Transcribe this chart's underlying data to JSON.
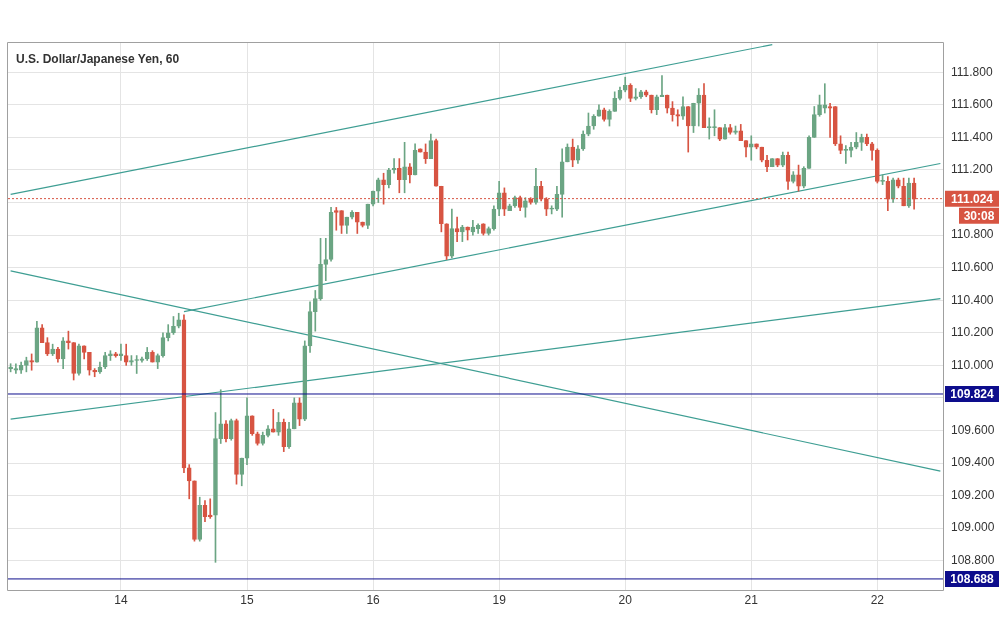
{
  "chart_data": {
    "type": "candlestick",
    "title": "U.S. Dollar/Japanese Yen, 60",
    "categories": [
      null,
      null,
      null,
      null,
      null,
      null,
      null,
      null,
      null,
      null,
      null,
      null,
      null,
      null,
      null,
      null,
      null,
      null,
      null,
      null,
      null,
      "14",
      null,
      null,
      null,
      null,
      null,
      null,
      null,
      null,
      null,
      null,
      null,
      null,
      null,
      null,
      null,
      null,
      null,
      null,
      null,
      null,
      null,
      null,
      null,
      "15",
      null,
      null,
      null,
      null,
      null,
      null,
      null,
      null,
      null,
      null,
      null,
      null,
      null,
      null,
      null,
      null,
      null,
      null,
      null,
      null,
      null,
      null,
      null,
      "16",
      null,
      null,
      null,
      null,
      null,
      null,
      null,
      null,
      null,
      null,
      null,
      null,
      null,
      null,
      null,
      null,
      null,
      null,
      null,
      null,
      null,
      null,
      null,
      "19",
      null,
      null,
      null,
      null,
      null,
      null,
      null,
      null,
      null,
      null,
      null,
      null,
      null,
      null,
      null,
      null,
      null,
      null,
      null,
      null,
      null,
      null,
      null,
      "20",
      null,
      null,
      null,
      null,
      null,
      null,
      null,
      null,
      null,
      null,
      null,
      null,
      null,
      null,
      null,
      null,
      null,
      null,
      null,
      null,
      null,
      null,
      null,
      "21",
      null,
      null,
      null,
      null,
      null,
      null,
      null,
      null,
      null,
      null,
      null,
      null,
      null,
      null,
      null,
      null,
      null,
      null,
      null,
      null,
      null,
      null,
      null,
      "22",
      null,
      null,
      null,
      null,
      null,
      null,
      null,
      null,
      null,
      null,
      null,
      null
    ],
    "ohlc": [
      [
        109.98,
        110.01,
        109.96,
        109.99
      ],
      [
        109.97,
        110.01,
        109.95,
        109.98
      ],
      [
        109.97,
        110.02,
        109.95,
        110.0
      ],
      [
        110.0,
        110.05,
        109.96,
        110.03
      ],
      [
        110.03,
        110.07,
        109.97,
        110.02
      ],
      [
        110.02,
        110.27,
        110.02,
        110.23
      ],
      [
        110.23,
        110.25,
        110.14,
        110.14
      ],
      [
        110.14,
        110.17,
        110.06,
        110.07
      ],
      [
        110.07,
        110.13,
        110.06,
        110.1
      ],
      [
        110.1,
        110.11,
        110.02,
        110.04
      ],
      [
        110.04,
        110.17,
        109.98,
        110.15
      ],
      [
        110.15,
        110.21,
        110.1,
        110.14
      ],
      [
        110.14,
        110.14,
        109.91,
        109.95
      ],
      [
        109.95,
        110.13,
        109.94,
        110.12
      ],
      [
        110.12,
        110.12,
        110.04,
        110.08
      ],
      [
        110.08,
        110.08,
        109.94,
        109.97
      ],
      [
        109.97,
        109.98,
        109.93,
        109.96
      ],
      [
        109.96,
        110.02,
        109.95,
        109.99
      ],
      [
        109.99,
        110.08,
        109.98,
        110.06
      ],
      [
        110.06,
        110.09,
        110.03,
        110.07
      ],
      [
        110.07,
        110.08,
        110.05,
        110.06
      ],
      [
        110.06,
        110.13,
        110.03,
        110.07
      ],
      [
        110.06,
        110.13,
        110.0,
        110.02
      ],
      [
        110.02,
        110.06,
        110.0,
        110.03
      ],
      [
        110.03,
        110.06,
        109.95,
        110.03
      ],
      [
        110.03,
        110.05,
        110.02,
        110.04
      ],
      [
        110.04,
        110.11,
        110.03,
        110.08
      ],
      [
        110.08,
        110.09,
        110.02,
        110.02
      ],
      [
        110.02,
        110.07,
        109.98,
        110.06
      ],
      [
        110.06,
        110.2,
        110.05,
        110.17
      ],
      [
        110.17,
        110.25,
        110.15,
        110.2
      ],
      [
        110.2,
        110.3,
        110.19,
        110.24
      ],
      [
        110.24,
        110.32,
        110.23,
        110.28
      ],
      [
        110.28,
        110.31,
        109.34,
        109.37
      ],
      [
        109.37,
        109.39,
        109.18,
        109.29
      ],
      [
        109.29,
        109.29,
        108.92,
        108.93
      ],
      [
        108.93,
        109.19,
        108.92,
        109.14
      ],
      [
        109.14,
        109.17,
        109.04,
        109.07
      ],
      [
        109.08,
        109.18,
        109.06,
        109.07
      ],
      [
        109.08,
        109.71,
        108.79,
        109.55
      ],
      [
        109.55,
        109.85,
        109.52,
        109.64
      ],
      [
        109.64,
        109.66,
        109.53,
        109.55
      ],
      [
        109.55,
        109.67,
        109.54,
        109.66
      ],
      [
        109.66,
        109.67,
        109.27,
        109.33
      ],
      [
        109.33,
        109.43,
        109.26,
        109.43
      ],
      [
        109.43,
        109.8,
        109.39,
        109.69
      ],
      [
        109.69,
        109.69,
        109.57,
        109.58
      ],
      [
        109.58,
        109.59,
        109.51,
        109.52
      ],
      [
        109.52,
        109.59,
        109.51,
        109.57
      ],
      [
        109.57,
        109.63,
        109.56,
        109.61
      ],
      [
        109.61,
        109.73,
        109.59,
        109.59
      ],
      [
        109.59,
        109.71,
        109.57,
        109.65
      ],
      [
        109.65,
        109.67,
        109.47,
        109.5
      ],
      [
        109.5,
        109.65,
        109.49,
        109.61
      ],
      [
        109.61,
        109.8,
        109.61,
        109.77
      ],
      [
        109.77,
        109.8,
        109.63,
        109.67
      ],
      [
        109.67,
        110.15,
        109.66,
        110.12
      ],
      [
        110.12,
        110.39,
        110.08,
        110.33
      ],
      [
        110.33,
        110.46,
        110.21,
        110.41
      ],
      [
        110.41,
        110.78,
        110.4,
        110.62
      ],
      [
        110.62,
        110.78,
        110.52,
        110.65
      ],
      [
        110.65,
        110.97,
        110.64,
        110.94
      ],
      [
        110.95,
        110.97,
        110.83,
        110.94
      ],
      [
        110.95,
        110.95,
        110.81,
        110.86
      ],
      [
        110.86,
        110.91,
        110.81,
        110.91
      ],
      [
        110.91,
        110.95,
        110.9,
        110.94
      ],
      [
        110.94,
        110.94,
        110.81,
        110.88
      ],
      [
        110.88,
        110.88,
        110.85,
        110.86
      ],
      [
        110.86,
        110.99,
        110.84,
        110.99
      ],
      [
        110.99,
        111.07,
        110.98,
        111.07
      ],
      [
        111.07,
        111.15,
        111.0,
        111.14
      ],
      [
        111.14,
        111.18,
        110.99,
        111.11
      ],
      [
        111.11,
        111.21,
        111.09,
        111.2
      ],
      [
        111.2,
        111.27,
        111.18,
        111.21
      ],
      [
        111.21,
        111.27,
        111.06,
        111.14
      ],
      [
        111.14,
        111.37,
        111.06,
        111.22
      ],
      [
        111.22,
        111.24,
        111.12,
        111.17
      ],
      [
        111.17,
        111.36,
        111.17,
        111.32
      ],
      [
        111.33,
        111.33,
        111.31,
        111.31
      ],
      [
        111.31,
        111.36,
        111.24,
        111.27
      ],
      [
        111.27,
        111.42,
        111.27,
        111.38
      ],
      [
        111.38,
        111.39,
        111.1,
        111.1
      ],
      [
        111.1,
        111.1,
        110.82,
        110.87
      ],
      [
        110.87,
        110.87,
        110.65,
        110.67
      ],
      [
        110.67,
        110.96,
        110.66,
        110.84
      ],
      [
        110.84,
        110.91,
        110.76,
        110.82
      ],
      [
        110.82,
        110.86,
        110.76,
        110.85
      ],
      [
        110.85,
        110.85,
        110.77,
        110.83
      ],
      [
        110.82,
        110.89,
        110.8,
        110.85
      ],
      [
        110.84,
        110.87,
        110.81,
        110.86
      ],
      [
        110.87,
        110.87,
        110.8,
        110.81
      ],
      [
        110.81,
        110.85,
        110.8,
        110.84
      ],
      [
        110.84,
        110.98,
        110.83,
        110.96
      ],
      [
        110.96,
        111.13,
        110.92,
        111.06
      ],
      [
        111.06,
        111.09,
        110.92,
        110.96
      ],
      [
        110.95,
        110.99,
        110.95,
        110.98
      ],
      [
        110.98,
        111.04,
        110.97,
        111.03
      ],
      [
        111.03,
        111.04,
        110.95,
        110.97
      ],
      [
        110.97,
        111.03,
        110.91,
        111.01
      ],
      [
        111.02,
        111.03,
        110.99,
        111.0
      ],
      [
        111.0,
        111.21,
        110.99,
        111.1
      ],
      [
        111.1,
        111.13,
        111.01,
        111.02
      ],
      [
        111.02,
        111.03,
        110.92,
        110.96
      ],
      [
        110.96,
        110.98,
        110.93,
        110.96
      ],
      [
        110.96,
        111.1,
        110.95,
        111.05
      ],
      [
        111.05,
        111.33,
        110.91,
        111.25
      ],
      [
        111.25,
        111.36,
        111.25,
        111.34
      ],
      [
        111.34,
        111.39,
        111.22,
        111.26
      ],
      [
        111.26,
        111.35,
        111.24,
        111.33
      ],
      [
        111.33,
        111.44,
        111.32,
        111.42
      ],
      [
        111.42,
        111.55,
        111.41,
        111.47
      ],
      [
        111.47,
        111.54,
        111.45,
        111.53
      ],
      [
        111.53,
        111.6,
        111.53,
        111.57
      ],
      [
        111.57,
        111.58,
        111.5,
        111.51
      ],
      [
        111.51,
        111.57,
        111.47,
        111.56
      ],
      [
        111.56,
        111.68,
        111.56,
        111.64
      ],
      [
        111.64,
        111.71,
        111.63,
        111.69
      ],
      [
        111.69,
        111.77,
        111.68,
        111.72
      ],
      [
        111.72,
        111.73,
        111.62,
        111.64
      ],
      [
        111.64,
        111.7,
        111.63,
        111.65
      ],
      [
        111.65,
        111.69,
        111.64,
        111.68
      ],
      [
        111.68,
        111.69,
        111.65,
        111.66
      ],
      [
        111.66,
        111.66,
        111.55,
        111.57
      ],
      [
        111.57,
        111.66,
        111.54,
        111.65
      ],
      [
        111.65,
        111.78,
        111.65,
        111.66
      ],
      [
        111.66,
        111.66,
        111.55,
        111.58
      ],
      [
        111.58,
        111.62,
        111.5,
        111.54
      ],
      [
        111.54,
        111.57,
        111.47,
        111.53
      ],
      [
        111.53,
        111.65,
        111.51,
        111.59
      ],
      [
        111.59,
        111.59,
        111.31,
        111.47
      ],
      [
        111.47,
        111.61,
        111.43,
        111.61
      ],
      [
        111.61,
        111.7,
        111.47,
        111.66
      ],
      [
        111.66,
        111.73,
        111.46,
        111.46
      ],
      [
        111.46,
        111.52,
        111.39,
        111.46
      ],
      [
        111.46,
        111.57,
        111.41,
        111.46
      ],
      [
        111.46,
        111.46,
        111.38,
        111.39
      ],
      [
        111.39,
        111.48,
        111.39,
        111.46
      ],
      [
        111.46,
        111.48,
        111.42,
        111.43
      ],
      [
        111.43,
        111.47,
        111.42,
        111.44
      ],
      [
        111.44,
        111.48,
        111.38,
        111.38
      ],
      [
        111.38,
        111.38,
        111.28,
        111.34
      ],
      [
        111.34,
        111.41,
        111.26,
        111.36
      ],
      [
        111.36,
        111.36,
        111.33,
        111.34
      ],
      [
        111.34,
        111.34,
        111.25,
        111.26
      ],
      [
        111.26,
        111.29,
        111.19,
        111.22
      ],
      [
        111.22,
        111.27,
        111.22,
        111.27
      ],
      [
        111.27,
        111.27,
        111.22,
        111.23
      ],
      [
        111.23,
        111.31,
        111.22,
        111.29
      ],
      [
        111.29,
        111.31,
        111.08,
        111.13
      ],
      [
        111.13,
        111.19,
        111.12,
        111.17
      ],
      [
        111.17,
        111.23,
        111.07,
        111.1
      ],
      [
        111.1,
        111.22,
        111.09,
        111.21
      ],
      [
        111.21,
        111.41,
        111.21,
        111.4
      ],
      [
        111.4,
        111.59,
        111.4,
        111.54
      ],
      [
        111.54,
        111.66,
        111.53,
        111.6
      ],
      [
        111.58,
        111.73,
        111.55,
        111.6
      ],
      [
        111.59,
        111.61,
        111.4,
        111.58
      ],
      [
        111.59,
        111.59,
        111.35,
        111.36
      ],
      [
        111.36,
        111.41,
        111.3,
        111.32
      ],
      [
        111.32,
        111.35,
        111.24,
        111.32
      ],
      [
        111.32,
        111.37,
        111.28,
        111.34
      ],
      [
        111.34,
        111.43,
        111.33,
        111.37
      ],
      [
        111.37,
        111.42,
        111.32,
        111.4
      ],
      [
        111.4,
        111.42,
        111.35,
        111.36
      ],
      [
        111.36,
        111.37,
        111.26,
        111.32
      ],
      [
        111.32,
        111.33,
        111.12,
        111.13
      ],
      [
        111.13,
        111.17,
        111.11,
        111.13
      ],
      [
        111.13,
        111.16,
        110.95,
        111.02
      ],
      [
        111.02,
        111.15,
        111.0,
        111.14
      ],
      [
        111.14,
        111.15,
        111.09,
        111.1
      ],
      [
        111.1,
        111.15,
        110.98,
        110.98
      ],
      [
        110.98,
        111.15,
        110.97,
        111.12
      ],
      [
        111.12,
        111.15,
        110.96,
        111.02
      ],
      null,
      null,
      null,
      null,
      null
    ],
    "colors": [
      "#6ba583",
      "#6ba583",
      "#6ba583",
      "#6ba583",
      "#d75442",
      "#6ba583",
      "#d75442",
      "#d75442",
      "#6ba583",
      "#d75442",
      "#6ba583",
      "#d75442",
      "#d75442",
      "#6ba583",
      "#d75442",
      "#d75442",
      "#d75442",
      "#6ba583",
      "#6ba583",
      "#6ba583",
      "#d75442",
      "#6ba583",
      "#d75442",
      "#6ba583",
      "#6ba583",
      "#6ba583",
      "#6ba583",
      "#d75442",
      "#6ba583",
      "#6ba583",
      "#6ba583",
      "#6ba583",
      "#6ba583",
      "#d75442",
      "#d75442",
      "#d75442",
      "#6ba583",
      "#d75442",
      "#d75442",
      "#6ba583",
      "#6ba583",
      "#d75442",
      "#6ba583",
      "#d75442",
      "#6ba583",
      "#6ba583",
      "#d75442",
      "#d75442",
      "#6ba583",
      "#6ba583",
      "#d75442",
      "#6ba583",
      "#d75442",
      "#6ba583",
      "#6ba583",
      "#d75442",
      "#6ba583",
      "#6ba583",
      "#6ba583",
      "#6ba583",
      "#6ba583",
      "#6ba583",
      "#d75442",
      "#d75442",
      "#6ba583",
      "#6ba583",
      "#d75442",
      "#d75442",
      "#6ba583",
      "#6ba583",
      "#6ba583",
      "#d75442",
      "#6ba583",
      "#6ba583",
      "#d75442",
      "#6ba583",
      "#d75442",
      "#6ba583",
      "#d75442",
      "#d75442",
      "#6ba583",
      "#d75442",
      "#d75442",
      "#d75442",
      "#6ba583",
      "#d75442",
      "#6ba583",
      "#d75442",
      "#6ba583",
      "#6ba583",
      "#d75442",
      "#6ba583",
      "#6ba583",
      "#6ba583",
      "#d75442",
      "#6ba583",
      "#6ba583",
      "#d75442",
      "#6ba583",
      "#d75442",
      "#6ba583",
      "#d75442",
      "#d75442",
      "#6ba583",
      "#6ba583",
      "#6ba583",
      "#6ba583",
      "#d75442",
      "#6ba583",
      "#6ba583",
      "#6ba583",
      "#6ba583",
      "#6ba583",
      "#d75442",
      "#6ba583",
      "#6ba583",
      "#6ba583",
      "#6ba583",
      "#d75442",
      "#6ba583",
      "#6ba583",
      "#d75442",
      "#d75442",
      "#6ba583",
      "#6ba583",
      "#d75442",
      "#d75442",
      "#d75442",
      "#6ba583",
      "#d75442",
      "#6ba583",
      "#6ba583",
      "#d75442",
      "#6ba583",
      "#6ba583",
      "#d75442",
      "#6ba583",
      "#d75442",
      "#6ba583",
      "#d75442",
      "#d75442",
      "#6ba583",
      "#d75442",
      "#d75442",
      "#d75442",
      "#6ba583",
      "#d75442",
      "#6ba583",
      "#d75442",
      "#6ba583",
      "#d75442",
      "#6ba583",
      "#6ba583",
      "#6ba583",
      "#6ba583",
      "#6ba583",
      "#d75442",
      "#d75442",
      "#d75442",
      "#6ba583",
      "#6ba583",
      "#6ba583",
      "#6ba583",
      "#d75442",
      "#d75442",
      "#d75442",
      "#6ba583",
      "#d75442",
      "#6ba583",
      "#d75442",
      "#d75442",
      "#6ba583",
      "#d75442",
      null,
      null,
      null,
      null,
      null
    ],
    "series": [
      {
        "type": "line",
        "color": "#3e9e93",
        "values": [
          111.05,
          null,
          null,
          null,
          null,
          null,
          null,
          null,
          null,
          null,
          null,
          null,
          null,
          null,
          null,
          null,
          null,
          null,
          null,
          null,
          null,
          null,
          null,
          null,
          null,
          null,
          null,
          null,
          null,
          null,
          null,
          null,
          null,
          null,
          null,
          null,
          null,
          null,
          null,
          null,
          null,
          null,
          null,
          null,
          null,
          null,
          null,
          null,
          null,
          null,
          null,
          null,
          null,
          null,
          null,
          null,
          null,
          null,
          null,
          null,
          null,
          null,
          null,
          null,
          null,
          null,
          null,
          null,
          null,
          null,
          null,
          null,
          null,
          null,
          null,
          null,
          null,
          null,
          null,
          null,
          null,
          null,
          null,
          null,
          null,
          null,
          null,
          null,
          null,
          null,
          null,
          null,
          null,
          null,
          null,
          null,
          null,
          null,
          null,
          null,
          null,
          null,
          null,
          null,
          null,
          null,
          null,
          null,
          null,
          null,
          null,
          null,
          null,
          null,
          null,
          null,
          null,
          null,
          null,
          null,
          null,
          null,
          null,
          null,
          null,
          null,
          null,
          null,
          null,
          null,
          null,
          null,
          null,
          null,
          null,
          null,
          null,
          null,
          null,
          null,
          null,
          null,
          null,
          null,
          null,
          111.97,
          null,
          null,
          null,
          null,
          null,
          null,
          null,
          null,
          null,
          null,
          null,
          null,
          null,
          null,
          null,
          null,
          null,
          null,
          null,
          null,
          null,
          null,
          null,
          null,
          null,
          null,
          null,
          null,
          null,
          null,
          null,
          null
        ]
      },
      {
        "type": "line",
        "color": "#3e9e93",
        "values": [
          null,
          null,
          null,
          null,
          null,
          null,
          null,
          null,
          null,
          null,
          null,
          null,
          null,
          null,
          null,
          null,
          null,
          null,
          null,
          null,
          null,
          null,
          null,
          null,
          null,
          null,
          null,
          null,
          null,
          null,
          null,
          null,
          null,
          110.33,
          null,
          null,
          null,
          null,
          null,
          null,
          null,
          null,
          null,
          null,
          null,
          null,
          null,
          null,
          null,
          null,
          null,
          null,
          null,
          null,
          null,
          null,
          null,
          null,
          null,
          null,
          null,
          null,
          null,
          null,
          null,
          null,
          null,
          null,
          null,
          null,
          null,
          null,
          null,
          null,
          null,
          null,
          null,
          null,
          null,
          null,
          null,
          null,
          null,
          null,
          null,
          null,
          null,
          null,
          null,
          null,
          null,
          null,
          null,
          null,
          null,
          null,
          null,
          null,
          null,
          null,
          null,
          null,
          null,
          null,
          null,
          null,
          null,
          null,
          null,
          null,
          null,
          null,
          null,
          null,
          null,
          null,
          null,
          null,
          null,
          null,
          null,
          null,
          null,
          null,
          null,
          null,
          null,
          null,
          null,
          null,
          null,
          null,
          null,
          null,
          null,
          null,
          null,
          null,
          null,
          null,
          null,
          null,
          null,
          null,
          null,
          null,
          null,
          null,
          null,
          null,
          null,
          null,
          null,
          null,
          null,
          null,
          null,
          null,
          null,
          null,
          null,
          null,
          null,
          null,
          null,
          null,
          null,
          null,
          null,
          null,
          null,
          null,
          null,
          null,
          null,
          null,
          null,
          111.24
        ]
      },
      {
        "type": "line",
        "color": "#3e9e93",
        "values": [
          110.58,
          null,
          null,
          null,
          null,
          null,
          null,
          null,
          null,
          null,
          null,
          null,
          null,
          null,
          null,
          null,
          null,
          null,
          null,
          null,
          null,
          null,
          null,
          null,
          null,
          null,
          null,
          null,
          null,
          null,
          null,
          null,
          null,
          null,
          null,
          null,
          null,
          null,
          null,
          null,
          null,
          null,
          null,
          null,
          null,
          null,
          null,
          null,
          null,
          null,
          null,
          null,
          null,
          null,
          null,
          null,
          null,
          null,
          null,
          null,
          null,
          null,
          null,
          null,
          null,
          null,
          null,
          null,
          null,
          null,
          null,
          null,
          null,
          null,
          null,
          null,
          null,
          null,
          null,
          null,
          null,
          null,
          null,
          null,
          null,
          null,
          null,
          null,
          null,
          null,
          null,
          null,
          null,
          null,
          null,
          null,
          null,
          null,
          null,
          null,
          null,
          null,
          null,
          null,
          null,
          null,
          null,
          null,
          null,
          null,
          null,
          null,
          null,
          null,
          null,
          null,
          null,
          null,
          null,
          null,
          null,
          null,
          null,
          null,
          null,
          null,
          null,
          null,
          null,
          null,
          null,
          null,
          null,
          null,
          null,
          null,
          null,
          null,
          null,
          null,
          null,
          null,
          null,
          null,
          null,
          null,
          null,
          null,
          null,
          null,
          null,
          null,
          null,
          null,
          null,
          null,
          null,
          null,
          null,
          null,
          null,
          null,
          null,
          null,
          null,
          null,
          null,
          null,
          null,
          null,
          null,
          null,
          null,
          null,
          null,
          null,
          null,
          109.35
        ]
      },
      {
        "type": "line",
        "color": "#3e9e93",
        "values": [
          109.67,
          null,
          null,
          null,
          null,
          null,
          null,
          null,
          null,
          null,
          null,
          null,
          null,
          null,
          null,
          null,
          null,
          null,
          null,
          null,
          null,
          null,
          null,
          null,
          null,
          null,
          null,
          null,
          null,
          null,
          null,
          null,
          null,
          null,
          null,
          null,
          null,
          null,
          null,
          null,
          null,
          null,
          null,
          null,
          null,
          null,
          null,
          null,
          null,
          null,
          null,
          null,
          null,
          null,
          null,
          null,
          null,
          null,
          null,
          null,
          null,
          null,
          null,
          null,
          null,
          null,
          null,
          null,
          null,
          null,
          null,
          null,
          null,
          null,
          null,
          null,
          null,
          null,
          null,
          null,
          null,
          null,
          null,
          null,
          null,
          null,
          null,
          null,
          null,
          null,
          null,
          null,
          null,
          null,
          null,
          null,
          null,
          null,
          null,
          null,
          null,
          null,
          null,
          null,
          null,
          null,
          null,
          null,
          null,
          null,
          null,
          null,
          null,
          null,
          null,
          null,
          null,
          null,
          null,
          null,
          null,
          null,
          null,
          null,
          null,
          null,
          null,
          null,
          null,
          null,
          null,
          null,
          null,
          null,
          null,
          null,
          null,
          null,
          null,
          null,
          null,
          null,
          null,
          null,
          null,
          null,
          null,
          null,
          null,
          null,
          null,
          null,
          null,
          null,
          null,
          null,
          null,
          null,
          null,
          null,
          null,
          null,
          null,
          null,
          null,
          null,
          null,
          null,
          null,
          null,
          null,
          null,
          null,
          null,
          null,
          null,
          null,
          110.41
        ]
      }
    ],
    "ylim": [
      108.62,
      111.98
    ],
    "yticks": [
      {
        "value": 108.8,
        "label": "108.800"
      },
      {
        "value": 109.0,
        "label": "109.000"
      },
      {
        "value": 109.2,
        "label": "109.200"
      },
      {
        "value": 109.4,
        "label": "109.400"
      },
      {
        "value": 109.6,
        "label": "109.600"
      },
      {
        "value": 109.8,
        "label": null
      },
      {
        "value": 110.0,
        "label": "110.000"
      },
      {
        "value": 110.2,
        "label": "110.200"
      },
      {
        "value": 110.4,
        "label": "110.400"
      },
      {
        "value": 110.6,
        "label": "110.600"
      },
      {
        "value": 110.8,
        "label": "110.800"
      },
      {
        "value": 111.0,
        "label": null
      },
      {
        "value": 111.2,
        "label": "111.200"
      },
      {
        "value": 111.4,
        "label": "111.400"
      },
      {
        "value": 111.6,
        "label": "111.600"
      },
      {
        "value": 111.8,
        "label": "111.800"
      }
    ],
    "ref_lines": [
      {
        "axis": "y",
        "value": 111.024,
        "label": "111.024",
        "color": "#d75442",
        "line_style": "dotted"
      },
      {
        "axis": "y",
        "value": 109.824,
        "label": "109.824",
        "color": "#0d0d8c",
        "line_style": "solid"
      },
      {
        "axis": "y",
        "value": 108.688,
        "label": "108.688",
        "color": "#0d0d8c",
        "line_style": "solid"
      }
    ],
    "annotations": [
      "30:08"
    ],
    "grid": true
  }
}
